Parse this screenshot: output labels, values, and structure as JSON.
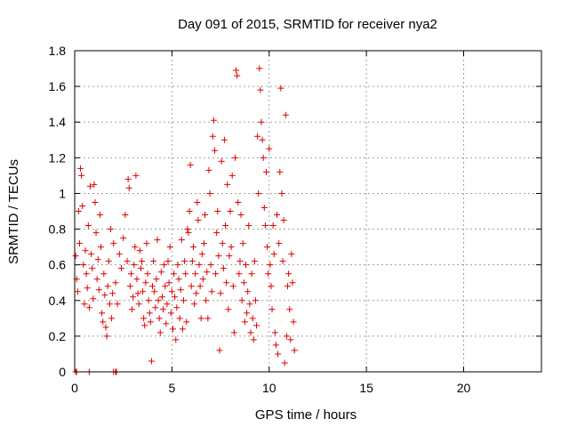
{
  "chart_data": {
    "type": "scatter",
    "title": "Day 091 of 2015, SRMTID for receiver nya2",
    "xlabel": "GPS time / hours",
    "ylabel": "SRMTID / TECUs",
    "xlim": [
      0,
      24
    ],
    "ylim": [
      0,
      1.8
    ],
    "x_ticks": [
      0,
      5,
      10,
      15,
      20
    ],
    "x_tick_labels": [
      "0",
      "5",
      "10",
      "15",
      "20"
    ],
    "y_ticks": [
      0,
      0.2,
      0.4,
      0.6,
      0.8,
      1.0,
      1.2,
      1.4,
      1.6,
      1.8
    ],
    "y_tick_labels": [
      "0",
      "0.2",
      "0.4",
      "0.6",
      "0.8",
      "1",
      "1.2",
      "1.4",
      "1.6",
      "1.8"
    ],
    "grid": true,
    "marker": "plus",
    "marker_color": "#e00000",
    "series": [
      {
        "points": [
          [
            0.05,
            0.0
          ],
          [
            0.1,
            0.0
          ],
          [
            0.75,
            0.0
          ],
          [
            2.0,
            0.0
          ],
          [
            2.1,
            0.0
          ],
          [
            2.15,
            0.0
          ],
          [
            0.05,
            0.65
          ],
          [
            0.1,
            0.52
          ],
          [
            0.15,
            0.45
          ],
          [
            0.2,
            0.9
          ],
          [
            0.25,
            0.72
          ],
          [
            0.3,
            1.14
          ],
          [
            0.35,
            1.1
          ],
          [
            0.4,
            0.93
          ],
          [
            0.45,
            0.6
          ],
          [
            0.5,
            0.38
          ],
          [
            0.55,
            0.68
          ],
          [
            0.6,
            0.55
          ],
          [
            0.65,
            0.47
          ],
          [
            0.7,
            0.82
          ],
          [
            0.75,
            0.36
          ],
          [
            0.8,
            1.04
          ],
          [
            0.85,
            0.66
          ],
          [
            0.9,
            0.58
          ],
          [
            0.95,
            0.41
          ],
          [
            1.0,
            1.05
          ],
          [
            1.05,
            0.95
          ],
          [
            1.1,
            0.78
          ],
          [
            1.15,
            0.52
          ],
          [
            1.2,
            0.63
          ],
          [
            1.25,
            0.46
          ],
          [
            1.3,
            0.88
          ],
          [
            1.35,
            0.7
          ],
          [
            1.4,
            0.33
          ],
          [
            1.45,
            0.28
          ],
          [
            1.5,
            0.55
          ],
          [
            1.55,
            0.43
          ],
          [
            1.6,
            0.25
          ],
          [
            1.65,
            0.2
          ],
          [
            1.7,
            0.48
          ],
          [
            1.75,
            0.62
          ],
          [
            1.8,
            0.38
          ],
          [
            1.85,
            0.8
          ],
          [
            1.9,
            0.3
          ],
          [
            1.95,
            0.44
          ],
          [
            2.0,
            0.72
          ],
          [
            2.1,
            0.5
          ],
          [
            2.2,
            0.38
          ],
          [
            2.3,
            0.66
          ],
          [
            2.4,
            0.58
          ],
          [
            2.5,
            0.75
          ],
          [
            2.6,
            0.88
          ],
          [
            2.7,
            0.62
          ],
          [
            2.75,
            1.08
          ],
          [
            2.8,
            1.03
          ],
          [
            2.85,
            0.48
          ],
          [
            2.9,
            0.55
          ],
          [
            2.95,
            0.35
          ],
          [
            3.0,
            0.42
          ],
          [
            3.05,
            0.6
          ],
          [
            3.1,
            0.7
          ],
          [
            3.15,
            1.1
          ],
          [
            3.2,
            0.52
          ],
          [
            3.25,
            0.44
          ],
          [
            3.3,
            0.38
          ],
          [
            3.35,
            0.68
          ],
          [
            3.4,
            0.58
          ],
          [
            3.45,
            0.62
          ],
          [
            3.5,
            0.45
          ],
          [
            3.55,
            0.3
          ],
          [
            3.6,
            0.26
          ],
          [
            3.65,
            0.5
          ],
          [
            3.7,
            0.72
          ],
          [
            3.75,
            0.55
          ],
          [
            3.8,
            0.4
          ],
          [
            3.85,
            0.33
          ],
          [
            3.9,
            0.28
          ],
          [
            3.95,
            0.06
          ],
          [
            4.0,
            0.48
          ],
          [
            4.05,
            0.62
          ],
          [
            4.1,
            0.45
          ],
          [
            4.15,
            0.36
          ],
          [
            4.2,
            0.52
          ],
          [
            4.25,
            0.74
          ],
          [
            4.3,
            0.4
          ],
          [
            4.35,
            0.3
          ],
          [
            4.4,
            0.22
          ],
          [
            4.45,
            0.56
          ],
          [
            4.5,
            0.42
          ],
          [
            4.55,
            0.35
          ],
          [
            4.6,
            0.6
          ],
          [
            4.65,
            0.48
          ],
          [
            4.7,
            0.27
          ],
          [
            4.75,
            0.38
          ],
          [
            4.8,
            0.62
          ],
          [
            4.85,
            0.5
          ],
          [
            4.9,
            0.7
          ],
          [
            4.95,
            0.33
          ],
          [
            5.0,
            0.45
          ],
          [
            5.05,
            0.24
          ],
          [
            5.1,
            0.55
          ],
          [
            5.15,
            0.42
          ],
          [
            5.2,
            0.18
          ],
          [
            5.25,
            0.36
          ],
          [
            5.3,
            0.6
          ],
          [
            5.35,
            0.52
          ],
          [
            5.4,
            0.3
          ],
          [
            5.45,
            0.46
          ],
          [
            5.5,
            0.74
          ],
          [
            5.55,
            0.24
          ],
          [
            5.6,
            0.4
          ],
          [
            5.65,
            0.62
          ],
          [
            5.7,
            0.55
          ],
          [
            5.75,
            0.28
          ],
          [
            5.8,
            0.8
          ],
          [
            5.85,
            0.78
          ],
          [
            5.9,
            0.9
          ],
          [
            5.95,
            1.16
          ],
          [
            6.0,
            0.48
          ],
          [
            6.05,
            0.62
          ],
          [
            6.1,
            0.7
          ],
          [
            6.15,
            0.38
          ],
          [
            6.2,
            0.55
          ],
          [
            6.25,
            0.44
          ],
          [
            6.3,
            0.95
          ],
          [
            6.35,
            0.85
          ],
          [
            6.4,
            0.6
          ],
          [
            6.45,
            0.48
          ],
          [
            6.5,
            0.3
          ],
          [
            6.55,
            0.66
          ],
          [
            6.6,
            0.52
          ],
          [
            6.65,
            0.72
          ],
          [
            6.7,
            0.88
          ],
          [
            6.75,
            0.4
          ],
          [
            6.8,
            0.56
          ],
          [
            6.85,
            0.3
          ],
          [
            6.9,
            1.13
          ],
          [
            6.95,
            1.0
          ],
          [
            7.0,
            0.6
          ],
          [
            7.05,
            0.45
          ],
          [
            7.1,
            1.32
          ],
          [
            7.15,
            1.41
          ],
          [
            7.2,
            1.24
          ],
          [
            7.25,
            0.55
          ],
          [
            7.3,
            0.78
          ],
          [
            7.35,
            0.9
          ],
          [
            7.4,
            0.65
          ],
          [
            7.45,
            0.12
          ],
          [
            7.5,
            0.44
          ],
          [
            7.55,
            1.18
          ],
          [
            7.6,
            0.72
          ],
          [
            7.65,
            0.58
          ],
          [
            7.7,
            1.3
          ],
          [
            7.75,
            0.82
          ],
          [
            7.8,
            0.5
          ],
          [
            7.85,
            1.05
          ],
          [
            7.9,
            0.35
          ],
          [
            7.95,
            0.65
          ],
          [
            8.0,
            0.9
          ],
          [
            8.05,
            0.7
          ],
          [
            8.1,
            1.1
          ],
          [
            8.15,
            0.48
          ],
          [
            8.2,
            0.22
          ],
          [
            8.25,
            1.2
          ],
          [
            8.3,
            1.69
          ],
          [
            8.35,
            1.66
          ],
          [
            8.4,
            0.95
          ],
          [
            8.45,
            0.55
          ],
          [
            8.5,
            0.62
          ],
          [
            8.55,
            0.88
          ],
          [
            8.6,
            0.4
          ],
          [
            8.65,
            0.72
          ],
          [
            8.7,
            0.5
          ],
          [
            8.75,
            0.28
          ],
          [
            8.8,
            0.6
          ],
          [
            8.85,
            0.33
          ],
          [
            8.9,
            0.45
          ],
          [
            8.95,
            0.82
          ],
          [
            9.0,
            0.38
          ],
          [
            9.05,
            0.22
          ],
          [
            9.1,
            0.55
          ],
          [
            9.15,
            0.3
          ],
          [
            9.2,
            0.18
          ],
          [
            9.25,
            0.62
          ],
          [
            9.3,
            0.4
          ],
          [
            9.35,
            0.26
          ],
          [
            9.4,
            1.32
          ],
          [
            9.45,
            1.0
          ],
          [
            9.5,
            1.7
          ],
          [
            9.55,
            1.58
          ],
          [
            9.6,
            1.4
          ],
          [
            9.65,
            1.3
          ],
          [
            9.7,
            1.2
          ],
          [
            9.75,
            0.92
          ],
          [
            9.8,
            0.82
          ],
          [
            9.85,
            1.12
          ],
          [
            9.9,
            0.7
          ],
          [
            9.95,
            0.55
          ],
          [
            10.0,
            1.25
          ],
          [
            10.05,
            0.6
          ],
          [
            10.1,
            0.48
          ],
          [
            10.15,
            0.35
          ],
          [
            10.2,
            0.82
          ],
          [
            10.25,
            0.66
          ],
          [
            10.3,
            0.22
          ],
          [
            10.35,
            0.15
          ],
          [
            10.4,
            0.88
          ],
          [
            10.45,
            0.1
          ],
          [
            10.5,
            0.72
          ],
          [
            10.55,
            1.12
          ],
          [
            10.6,
            1.59
          ],
          [
            10.65,
            1.0
          ],
          [
            10.7,
            0.62
          ],
          [
            10.75,
            0.85
          ],
          [
            10.8,
            0.05
          ],
          [
            10.85,
            1.44
          ],
          [
            10.9,
            0.2
          ],
          [
            10.95,
            0.48
          ],
          [
            11.0,
            0.55
          ],
          [
            11.05,
            0.35
          ],
          [
            11.1,
            0.18
          ],
          [
            11.15,
            0.66
          ],
          [
            11.2,
            0.5
          ],
          [
            11.25,
            0.28
          ],
          [
            11.3,
            0.12
          ]
        ]
      }
    ]
  }
}
